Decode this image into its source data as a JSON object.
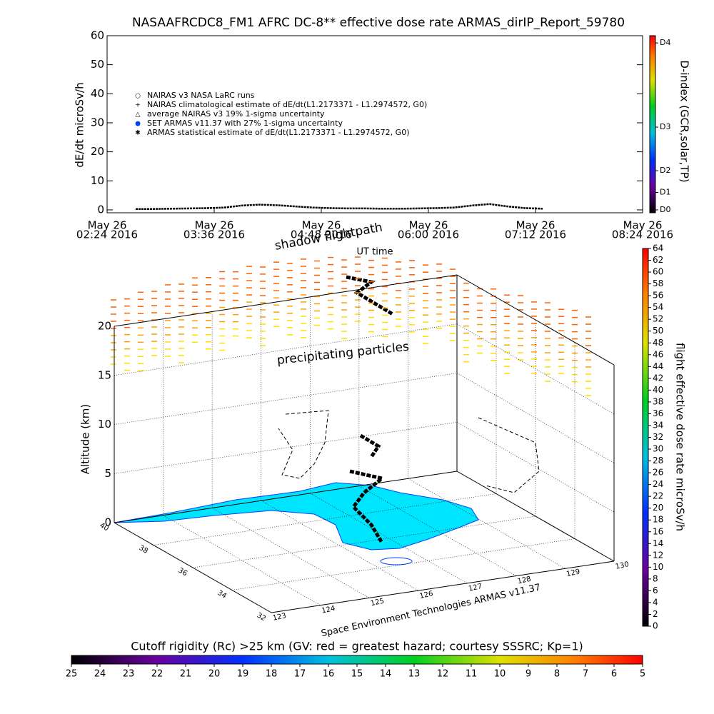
{
  "chart_data": [
    {
      "type": "line",
      "title": "NASAAFRCDC8_FM1 AFRC DC-8** effective dose rate ARMAS_dirIP_Report_59780",
      "ylabel": "dE/dt microSv/h",
      "xlabel": "UT time",
      "xtick_labels": [
        [
          "May 26",
          "02:24 2016"
        ],
        [
          "May 26",
          "03:36 2016"
        ],
        [
          "May 26",
          "04:48 2016"
        ],
        [
          "May 26",
          "06:00 2016"
        ],
        [
          "May 26",
          "07:12 2016"
        ],
        [
          "May 26",
          "08:24 2016"
        ]
      ],
      "ylim": [
        -1,
        60
      ],
      "yticks": [
        0,
        10,
        20,
        30,
        40,
        50,
        60
      ],
      "legend": [
        "NAIRAS v3 NASA LaRC runs",
        "NAIRAS climatological estimate of dE/dt(L1.2173371 - L1.2974572, G0)",
        "average NAIRAS v3 19% 1-sigma uncertainty",
        "SET ARMAS v11.37 with 27% 1-sigma uncertainty",
        "ARMAS statistical estimate of dE/dt(L1.2173371 - L1.2974572, G0)"
      ],
      "series": [
        {
          "name": "NAIRAS v3 NASA LaRC runs",
          "color": "#000000",
          "values": [
            0.3,
            0.3,
            0.4,
            0.5,
            0.6,
            0.8,
            1.5,
            1.8,
            1.6,
            1.2,
            0.8,
            0.6,
            0.5,
            0.5,
            0.4,
            0.4,
            0.5,
            0.6,
            0.8,
            1.5,
            2,
            1.2,
            0.6,
            0.4
          ]
        }
      ],
      "y2label": "D-index (GCR,solar,TP)",
      "y2lim": [
        -1,
        60
      ],
      "y2ticks": [
        {
          "value": 0,
          "label": "D0"
        },
        {
          "value": 6,
          "label": "D1"
        },
        {
          "value": 13.5,
          "label": "D2"
        },
        {
          "value": 28.5,
          "label": "D3"
        },
        {
          "value": 57.5,
          "label": "D4"
        }
      ]
    },
    {
      "type": "surface3d",
      "zlabel": "Altitude (km)",
      "zlim": [
        0,
        20
      ],
      "zticks": [
        0,
        5,
        10,
        15,
        20
      ],
      "latlim": [
        32,
        40
      ],
      "latticks": [
        32,
        34,
        36,
        38,
        40
      ],
      "lonlim": [
        123,
        130
      ],
      "lonticks": [
        123,
        124,
        125,
        126,
        127,
        128,
        129,
        130
      ],
      "annotations": [
        "shadow flightpath",
        "precipitating particles"
      ],
      "credit": "Space Environment Technologies ARMAS v11.37",
      "colorbar_label": "flight effective dose rate microSv/h",
      "colorbar_lim": [
        0,
        64
      ],
      "colorbar_ticks": [
        0,
        2,
        4,
        6,
        8,
        10,
        12,
        14,
        16,
        18,
        20,
        22,
        24,
        26,
        28,
        30,
        32,
        34,
        36,
        38,
        40,
        42,
        44,
        46,
        48,
        50,
        52,
        54,
        56,
        58,
        60,
        62,
        64
      ]
    },
    {
      "type": "colorbar",
      "title": "Cutoff rigidity (Rc) >25 km (GV: red = greatest hazard; courtesy SSSRC; Kp=1)",
      "xlim": [
        25,
        5
      ],
      "xticks": [
        25,
        24,
        23,
        22,
        21,
        20,
        19,
        18,
        17,
        16,
        15,
        14,
        13,
        12,
        11,
        10,
        9,
        8,
        7,
        6,
        5
      ]
    }
  ]
}
